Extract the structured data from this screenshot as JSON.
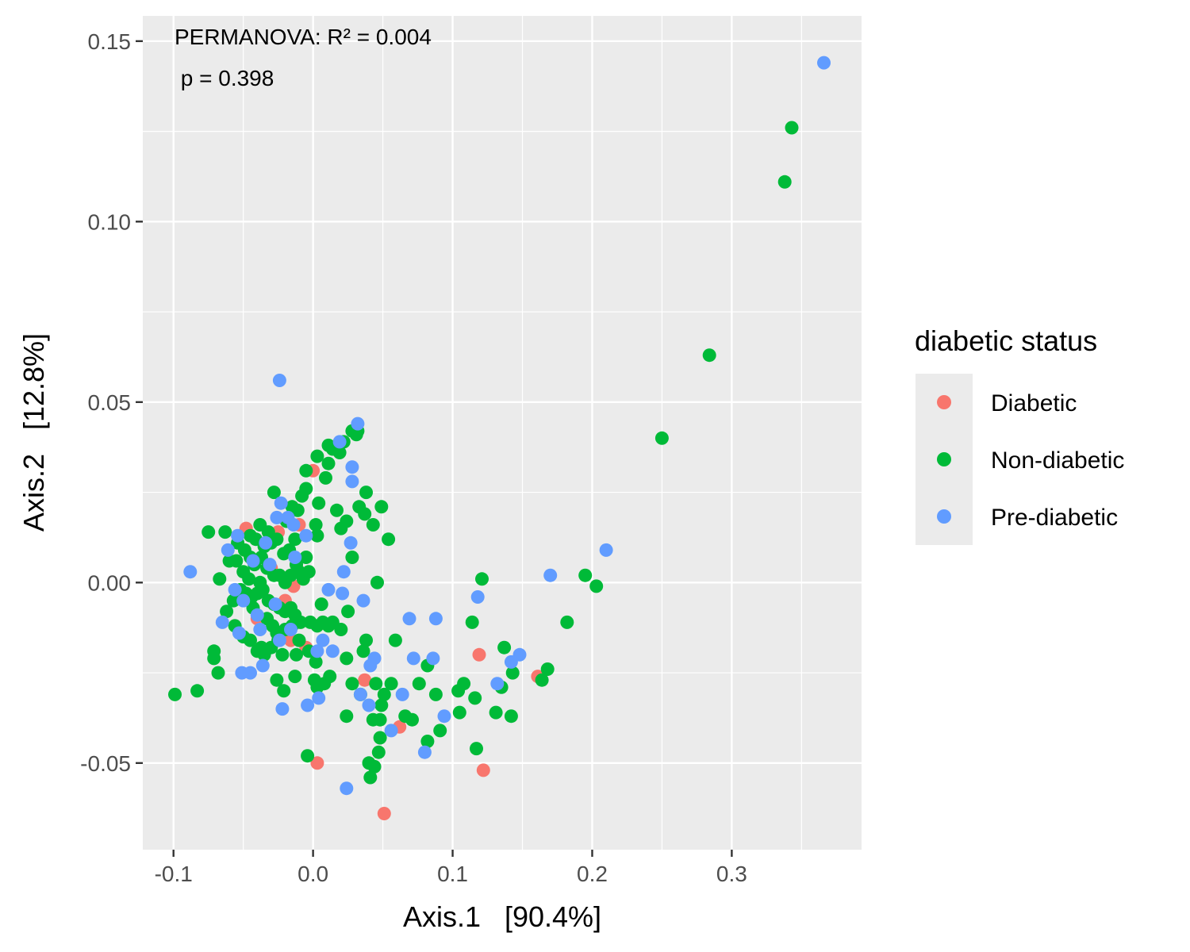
{
  "chart_data": {
    "type": "scatter",
    "xlabel": "Axis.1   [90.4%]",
    "ylabel": "Axis.2   [12.8%]",
    "xlim": [
      -0.122,
      0.393
    ],
    "ylim": [
      -0.074,
      0.157
    ],
    "x_ticks": [
      -0.1,
      0.0,
      0.1,
      0.2,
      0.3
    ],
    "x_tick_labels": [
      "-0.1",
      "0.0",
      "0.1",
      "0.2",
      "0.3"
    ],
    "y_ticks": [
      -0.05,
      0.0,
      0.05,
      0.1,
      0.15
    ],
    "y_tick_labels": [
      "-0.05",
      "0.00",
      "0.05",
      "0.10",
      "0.15"
    ],
    "grid": true,
    "annotations": [
      "PERMANOVA: R² = 0.004",
      " p = 0.398"
    ],
    "legend": {
      "title": "diabetic status",
      "placement": "right"
    },
    "series": [
      {
        "name": "Diabetic",
        "color": "#F8766D",
        "points": [
          [
            0.003,
            -0.05
          ],
          [
            0.051,
            -0.064
          ],
          [
            0.122,
            -0.052
          ],
          [
            0.119,
            -0.02
          ],
          [
            0.161,
            -0.026
          ],
          [
            0.062,
            -0.04
          ],
          [
            0.037,
            -0.027
          ],
          [
            -0.048,
            0.015
          ],
          [
            -0.025,
            0.014
          ],
          [
            -0.01,
            0.016
          ],
          [
            -0.016,
            -0.016
          ],
          [
            -0.005,
            -0.018
          ],
          [
            -0.014,
            -0.001
          ],
          [
            -0.03,
            0.004
          ],
          [
            -0.02,
            -0.005
          ],
          [
            0.0,
            0.031
          ],
          [
            -0.04,
            -0.01
          ],
          [
            -0.012,
            0.005
          ]
        ]
      },
      {
        "name": "Non-diabetic",
        "color": "#00BA38",
        "points": [
          [
            0.343,
            0.126
          ],
          [
            0.338,
            0.111
          ],
          [
            0.284,
            0.063
          ],
          [
            0.25,
            0.04
          ],
          [
            0.195,
            0.002
          ],
          [
            0.203,
            -0.001
          ],
          [
            0.182,
            -0.011
          ],
          [
            0.168,
            -0.024
          ],
          [
            0.164,
            -0.027
          ],
          [
            0.121,
            0.001
          ],
          [
            0.114,
            -0.011
          ],
          [
            0.142,
            -0.037
          ],
          [
            0.131,
            -0.036
          ],
          [
            0.117,
            -0.046
          ],
          [
            0.143,
            -0.025
          ],
          [
            0.137,
            -0.018
          ],
          [
            0.135,
            -0.029
          ],
          [
            0.116,
            -0.032
          ],
          [
            0.108,
            -0.028
          ],
          [
            0.104,
            -0.03
          ],
          [
            0.105,
            -0.036
          ],
          [
            0.088,
            -0.031
          ],
          [
            0.091,
            -0.041
          ],
          [
            0.082,
            -0.044
          ],
          [
            0.082,
            -0.023
          ],
          [
            0.076,
            -0.028
          ],
          [
            0.071,
            -0.038
          ],
          [
            0.066,
            -0.037
          ],
          [
            0.059,
            -0.016
          ],
          [
            0.056,
            -0.028
          ],
          [
            0.051,
            -0.031
          ],
          [
            0.049,
            -0.034
          ],
          [
            0.048,
            -0.038
          ],
          [
            0.048,
            -0.043
          ],
          [
            0.047,
            -0.047
          ],
          [
            0.044,
            -0.051
          ],
          [
            0.04,
            -0.05
          ],
          [
            0.041,
            -0.054
          ],
          [
            0.045,
            -0.028
          ],
          [
            0.043,
            -0.038
          ],
          [
            0.038,
            -0.016
          ],
          [
            0.036,
            -0.019
          ],
          [
            0.034,
            -0.031
          ],
          [
            0.028,
            -0.028
          ],
          [
            0.024,
            -0.021
          ],
          [
            0.024,
            -0.037
          ],
          [
            0.025,
            -0.008
          ],
          [
            0.046,
            -0.0
          ],
          [
            0.049,
            0.021
          ],
          [
            0.054,
            0.012
          ],
          [
            0.043,
            0.016
          ],
          [
            0.037,
            0.019
          ],
          [
            0.038,
            0.025
          ],
          [
            0.024,
            0.017
          ],
          [
            0.017,
            0.02
          ],
          [
            0.011,
            0.033
          ],
          [
            0.009,
            0.029
          ],
          [
            0.003,
            0.035
          ],
          [
            -0.005,
            0.031
          ],
          [
            0.014,
            0.037
          ],
          [
            0.011,
            0.038
          ],
          [
            0.019,
            0.036
          ],
          [
            0.022,
            0.039
          ],
          [
            0.028,
            0.042
          ],
          [
            0.031,
            0.041
          ],
          [
            0.032,
            0.042
          ],
          [
            0.004,
            0.022
          ],
          [
            0.002,
            0.016
          ],
          [
            0.003,
            0.013
          ],
          [
            -0.005,
            0.026
          ],
          [
            -0.008,
            0.024
          ],
          [
            -0.011,
            0.02
          ],
          [
            -0.015,
            0.021
          ],
          [
            -0.019,
            0.017
          ],
          [
            -0.028,
            0.025
          ],
          [
            -0.038,
            0.016
          ],
          [
            -0.045,
            0.013
          ],
          [
            -0.054,
            0.011
          ],
          [
            -0.063,
            0.014
          ],
          [
            -0.075,
            0.014
          ],
          [
            -0.067,
            0.001
          ],
          [
            -0.06,
            0.006
          ],
          [
            -0.055,
            0.006
          ],
          [
            -0.05,
            0.003
          ],
          [
            -0.046,
            0.001
          ],
          [
            -0.042,
            0.005
          ],
          [
            -0.037,
            0.007
          ],
          [
            -0.033,
            0.004
          ],
          [
            -0.028,
            0.002
          ],
          [
            -0.024,
            0.002
          ],
          [
            -0.02,
            0.0
          ],
          [
            -0.016,
            0.002
          ],
          [
            -0.012,
            0.005
          ],
          [
            -0.007,
            0.001
          ],
          [
            -0.003,
            0.003
          ],
          [
            -0.057,
            -0.005
          ],
          [
            -0.052,
            -0.002
          ],
          [
            -0.048,
            -0.003
          ],
          [
            -0.044,
            -0.004
          ],
          [
            -0.04,
            -0.003
          ],
          [
            -0.036,
            -0.002
          ],
          [
            -0.032,
            -0.005
          ],
          [
            -0.028,
            -0.006
          ],
          [
            -0.024,
            -0.007
          ],
          [
            -0.02,
            -0.008
          ],
          [
            -0.016,
            -0.007
          ],
          [
            -0.013,
            -0.009
          ],
          [
            -0.009,
            -0.011
          ],
          [
            -0.002,
            -0.011
          ],
          [
            0.003,
            -0.012
          ],
          [
            0.007,
            -0.011
          ],
          [
            0.011,
            -0.012
          ],
          [
            0.014,
            -0.011
          ],
          [
            0.02,
            -0.013
          ],
          [
            0.006,
            -0.006
          ],
          [
            -0.062,
            -0.008
          ],
          [
            -0.056,
            -0.012
          ],
          [
            -0.05,
            -0.015
          ],
          [
            -0.045,
            -0.016
          ],
          [
            -0.04,
            -0.019
          ],
          [
            -0.035,
            -0.02
          ],
          [
            -0.03,
            -0.018
          ],
          [
            -0.026,
            -0.014
          ],
          [
            -0.02,
            -0.013
          ],
          [
            -0.015,
            -0.012
          ],
          [
            -0.01,
            -0.016
          ],
          [
            -0.003,
            -0.019
          ],
          [
            0.002,
            -0.022
          ],
          [
            -0.012,
            -0.02
          ],
          [
            -0.022,
            -0.02
          ],
          [
            -0.037,
            -0.018
          ],
          [
            -0.071,
            -0.019
          ],
          [
            -0.071,
            -0.021
          ],
          [
            -0.068,
            -0.025
          ],
          [
            -0.083,
            -0.03
          ],
          [
            -0.099,
            -0.031
          ],
          [
            -0.026,
            -0.027
          ],
          [
            -0.021,
            -0.03
          ],
          [
            -0.013,
            -0.026
          ],
          [
            0.001,
            -0.027
          ],
          [
            0.003,
            -0.029
          ],
          [
            0.008,
            -0.028
          ],
          [
            0.012,
            -0.026
          ],
          [
            -0.004,
            -0.048
          ],
          [
            -0.049,
            0.009
          ],
          [
            -0.045,
            0.007
          ],
          [
            -0.041,
            0.012
          ],
          [
            -0.035,
            0.01
          ],
          [
            -0.03,
            0.011
          ],
          [
            -0.026,
            0.012
          ],
          [
            -0.021,
            0.008
          ],
          [
            -0.017,
            0.009
          ],
          [
            -0.013,
            0.012
          ],
          [
            -0.01,
            0.003
          ],
          [
            -0.005,
            0.007
          ],
          [
            -0.032,
            0.014
          ],
          [
            -0.038,
            0.0
          ],
          [
            -0.043,
            -0.007
          ],
          [
            -0.033,
            -0.01
          ],
          [
            -0.029,
            -0.012
          ],
          [
            -0.025,
            -0.016
          ],
          [
            0.02,
            0.015
          ],
          [
            0.028,
            0.007
          ],
          [
            0.033,
            0.021
          ]
        ]
      },
      {
        "name": "Pre-diabetic",
        "color": "#619CFF",
        "points": [
          [
            0.366,
            0.144
          ],
          [
            0.21,
            0.009
          ],
          [
            0.17,
            0.002
          ],
          [
            0.148,
            -0.02
          ],
          [
            0.142,
            -0.022
          ],
          [
            0.132,
            -0.028
          ],
          [
            0.118,
            -0.004
          ],
          [
            0.094,
            -0.037
          ],
          [
            0.088,
            -0.01
          ],
          [
            0.086,
            -0.021
          ],
          [
            0.08,
            -0.047
          ],
          [
            0.072,
            -0.021
          ],
          [
            0.069,
            -0.01
          ],
          [
            0.064,
            -0.031
          ],
          [
            0.056,
            -0.041
          ],
          [
            0.044,
            -0.021
          ],
          [
            0.041,
            -0.023
          ],
          [
            0.04,
            -0.034
          ],
          [
            0.036,
            -0.005
          ],
          [
            0.034,
            -0.031
          ],
          [
            0.024,
            -0.057
          ],
          [
            0.021,
            -0.003
          ],
          [
            0.022,
            0.003
          ],
          [
            0.027,
            0.011
          ],
          [
            0.028,
            0.028
          ],
          [
            0.028,
            0.032
          ],
          [
            0.032,
            0.044
          ],
          [
            0.019,
            0.039
          ],
          [
            0.014,
            -0.019
          ],
          [
            0.011,
            -0.002
          ],
          [
            0.007,
            -0.016
          ],
          [
            0.004,
            -0.032
          ],
          [
            0.003,
            -0.019
          ],
          [
            -0.004,
            -0.034
          ],
          [
            -0.005,
            0.013
          ],
          [
            -0.014,
            0.016
          ],
          [
            -0.018,
            0.018
          ],
          [
            -0.023,
            0.022
          ],
          [
            -0.024,
            0.056
          ],
          [
            -0.026,
            0.018
          ],
          [
            -0.022,
            -0.035
          ],
          [
            -0.024,
            -0.016
          ],
          [
            -0.027,
            -0.006
          ],
          [
            -0.031,
            0.005
          ],
          [
            -0.034,
            0.011
          ],
          [
            -0.036,
            -0.023
          ],
          [
            -0.038,
            -0.013
          ],
          [
            -0.04,
            -0.009
          ],
          [
            -0.043,
            0.006
          ],
          [
            -0.045,
            -0.025
          ],
          [
            -0.05,
            -0.005
          ],
          [
            -0.051,
            -0.025
          ],
          [
            -0.053,
            -0.014
          ],
          [
            -0.054,
            0.013
          ],
          [
            -0.056,
            -0.002
          ],
          [
            -0.061,
            0.009
          ],
          [
            -0.065,
            -0.011
          ],
          [
            -0.088,
            0.003
          ],
          [
            -0.016,
            -0.013
          ],
          [
            -0.013,
            0.007
          ]
        ]
      }
    ]
  }
}
